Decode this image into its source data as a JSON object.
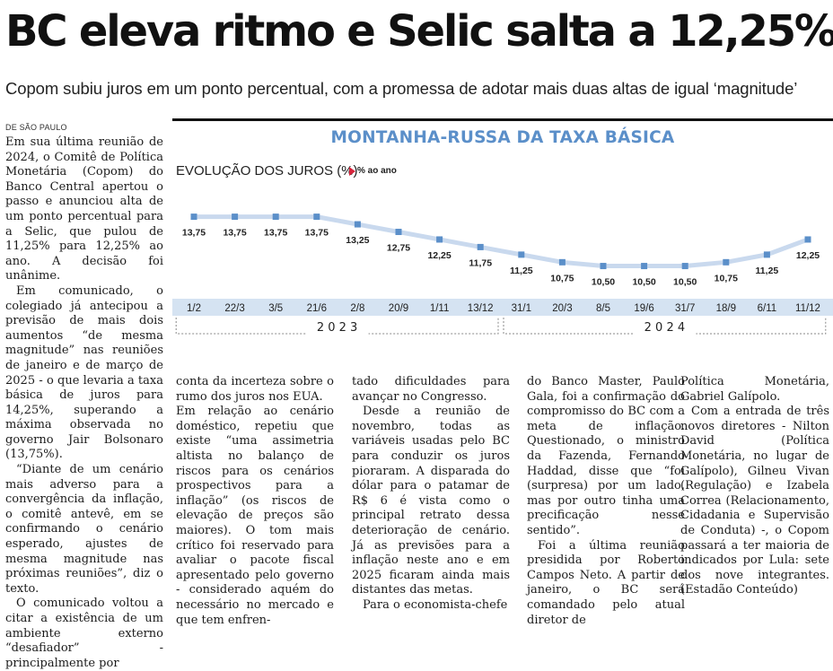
{
  "headline": "BC eleva ritmo e Selic salta a 12,25%",
  "subhead": "Copom subiu juros em um ponto percentual, com a promessa de adotar mais duas altas de igual ‘magnitude’",
  "byline": "DE SÃO PAULO",
  "chart_data": {
    "type": "line",
    "title": "MONTANHA-RUSSA DA TAXA BÁSICA",
    "subtitle": "EVOLUÇÃO DOS JUROS (%)",
    "unit_label": "% ao ano",
    "categories": [
      "1/2",
      "22/3",
      "3/5",
      "21/6",
      "2/8",
      "20/9",
      "1/11",
      "13/12",
      "31/1",
      "20/3",
      "8/5",
      "19/6",
      "31/7",
      "18/9",
      "6/11",
      "11/12"
    ],
    "values": [
      13.75,
      13.75,
      13.75,
      13.75,
      13.25,
      12.75,
      12.25,
      11.75,
      11.25,
      10.75,
      10.5,
      10.5,
      10.5,
      10.75,
      11.25,
      12.25
    ],
    "value_labels": [
      "13,75",
      "13,75",
      "13,75",
      "13,75",
      "13,25",
      "12,75",
      "12,25",
      "11,75",
      "11,25",
      "10,75",
      "10,50",
      "10,50",
      "10,50",
      "10,75",
      "11,25",
      "12,25"
    ],
    "years": [
      {
        "label": "2 0 2 3",
        "from": 0,
        "to": 7
      },
      {
        "label": "2 0 2 4",
        "from": 8,
        "to": 15
      }
    ],
    "ylim": [
      10.0,
      14.2
    ],
    "line_color": "#c9d9ee",
    "marker_color": "#5b8fc9",
    "band_color": "#d5e3f2",
    "title_color": "#5b8fc9",
    "arrow_color": "#d6243b"
  },
  "columns": {
    "col1": [
      "Em sua última reunião de 2024, o Comitê de Política Monetária (Copom) do Banco Central apertou o passo e anunciou alta de um ponto percentual para a Selic, que pulou de 11,25% para 12,25% ao ano. A decisão foi unânime.",
      "Em comunicado, o colegiado já antecipou a previsão de mais dois aumentos “de mesma magnitude” nas reuniões de janeiro e de março de 2025 - o que levaria a taxa básica de juros para 14,25%, superando a máxima observada no governo Jair Bolsonaro (13,75%).",
      "“Diante de um cenário mais adverso para a convergência da inflação, o comitê antevê, em se confirmando o cenário esperado, ajustes de mesma magnitude nas próximas reuniões”, diz o texto.",
      "O comunicado voltou a citar a existência de um ambiente externo “desafiador” - principalmente por"
    ],
    "col2": [
      "conta da incerteza sobre o rumo dos juros nos EUA.",
      "Em relação ao cenário doméstico, repetiu que existe “uma assimetria altista no balanço de riscos para os cenários prospectivos para a inflação” (os riscos de elevação de preços são maiores). O tom mais crítico foi reservado para avaliar o pacote fiscal apresentado pelo governo - considerado aquém do necessário no mercado e que tem enfren-"
    ],
    "col3": [
      "tado dificuldades para avançar no Congresso.",
      "Desde a reunião de novembro, todas as variáveis usadas pelo BC para conduzir os juros pioraram. A disparada do dólar para o patamar de R$ 6 é vista como o principal retrato dessa deterioração de cenário. Já as previsões para a inflação neste ano e em 2025 ficaram ainda mais distantes das metas.",
      "Para o economista-chefe"
    ],
    "col4": [
      "do Banco Master, Paulo Gala, foi a confirmação do compromisso do BC com a meta de inflação. Questionado, o ministro da Fazenda, Fernando Haddad, disse que “foi (surpresa) por um lado, mas por outro tinha uma precificação nesse sentido”.",
      "Foi a última reunião presidida por Roberto Campos Neto. A partir de janeiro, o BC será comandado pelo atual diretor de"
    ],
    "col5": [
      "Política Monetária, Gabriel Galípolo.",
      "Com a entrada de três novos diretores - Nilton David (Política Monetária, no lugar de Galípolo), Gilneu Vivan (Regulação) e Izabela Correa (Relacionamento, Cidadania e Supervisão de Conduta) -, o Copom passará a ter maioria de indicados por Lula: sete dos nove integrantes. (Estadão Conteúdo)"
    ]
  }
}
